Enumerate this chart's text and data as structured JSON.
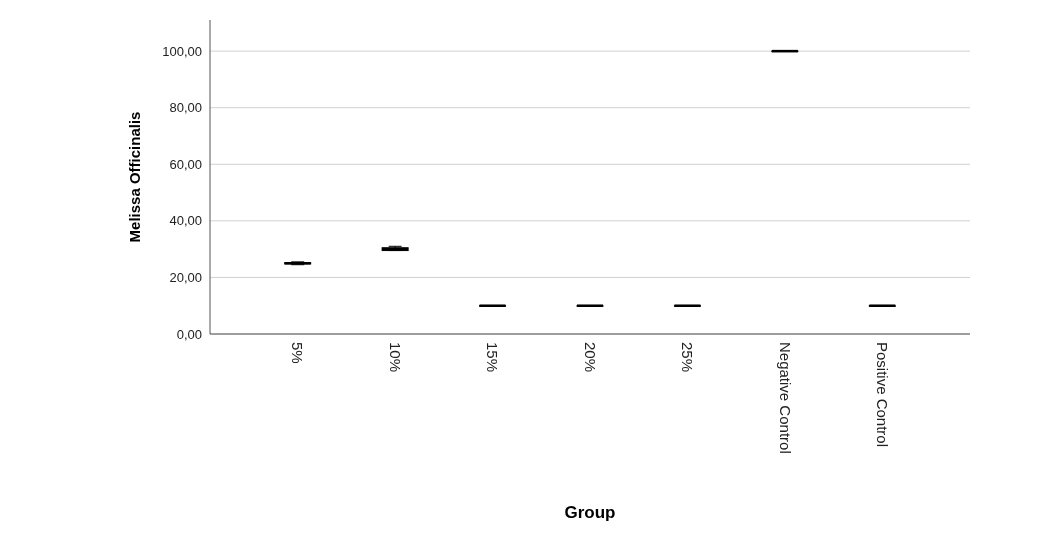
{
  "chart_data": {
    "type": "box",
    "xlabel": "Group",
    "ylabel": "Melissa Officinalis",
    "categories": [
      "5%",
      "10%",
      "15%",
      "20%",
      "25%",
      "Negative Control",
      "Positive Control"
    ],
    "boxes": [
      {
        "low": 24.5,
        "q1": 24.8,
        "median": 25,
        "q3": 25.2,
        "high": 25.5
      },
      {
        "low": 29.5,
        "q1": 29.5,
        "median": 30,
        "q3": 30.5,
        "high": 31
      },
      {
        "low": 10,
        "q1": 10,
        "median": 10,
        "q3": 10,
        "high": 10
      },
      {
        "low": 10,
        "q1": 10,
        "median": 10,
        "q3": 10,
        "high": 10
      },
      {
        "low": 10,
        "q1": 10,
        "median": 10,
        "q3": 10,
        "high": 10
      },
      {
        "low": 100,
        "q1": 100,
        "median": 100,
        "q3": 100,
        "high": 100
      },
      {
        "low": 10,
        "q1": 10,
        "median": 10,
        "q3": 10,
        "high": 10
      }
    ],
    "color": "#4f8fd0",
    "ylim": [
      0,
      111
    ],
    "yticks": [
      {
        "value": 0,
        "label": "0,00"
      },
      {
        "value": 20,
        "label": "20,00"
      },
      {
        "value": 40,
        "label": "40,00"
      },
      {
        "value": 60,
        "label": "60,00"
      },
      {
        "value": 80,
        "label": "80,00"
      },
      {
        "value": 100,
        "label": "100,00"
      }
    ],
    "grid": "y"
  }
}
